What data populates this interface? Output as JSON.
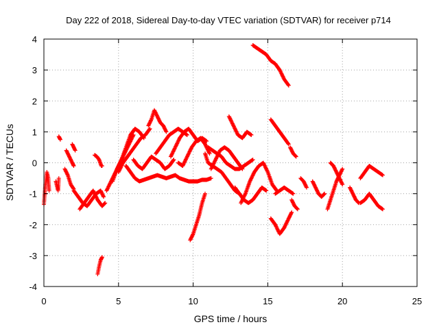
{
  "chart_data": {
    "type": "scatter",
    "title": "Day 222 of 2018, Sidereal Day-to-day VTEC variation (SDTVAR) for receiver p714",
    "xlabel": "GPS time / hours",
    "ylabel": "SDTVAR / TECUs",
    "xlim": [
      0,
      25
    ],
    "ylim": [
      -4,
      4
    ],
    "xticks": [
      "0",
      "5",
      "10",
      "15",
      "20",
      "25"
    ],
    "yticks": [
      "-4",
      "-3",
      "-2",
      "-1",
      "0",
      "1",
      "2",
      "3",
      "4"
    ],
    "grid": true,
    "marker": "+",
    "color": "#ff0000",
    "series": [
      {
        "name": "p714",
        "segments": [
          {
            "x": [
              0.0,
              0.1,
              0.2,
              0.3,
              0.35
            ],
            "y": [
              -1.35,
              -0.7,
              -0.3,
              -0.5,
              -0.9
            ]
          },
          {
            "x": [
              0.8,
              0.95,
              1.0
            ],
            "y": [
              -0.6,
              -0.9,
              -0.5
            ]
          },
          {
            "x": [
              1.0,
              1.05,
              1.1
            ],
            "y": [
              0.85,
              0.8,
              0.75
            ]
          },
          {
            "x": [
              1.4,
              1.6,
              1.8,
              2.0
            ],
            "y": [
              -0.2,
              -0.4,
              -0.7,
              -0.85
            ]
          },
          {
            "x": [
              1.5,
              1.7,
              1.9,
              2.0
            ],
            "y": [
              0.4,
              0.2,
              0.0,
              -0.1
            ]
          },
          {
            "x": [
              1.9,
              2.0,
              2.1
            ],
            "y": [
              0.6,
              0.5,
              0.4
            ]
          },
          {
            "x": [
              2.0,
              2.3,
              2.6,
              2.9,
              3.2,
              3.5,
              3.8,
              4.0
            ],
            "y": [
              -0.9,
              -1.1,
              -1.3,
              -1.4,
              -1.2,
              -1.0,
              -0.9,
              -1.1
            ]
          },
          {
            "x": [
              2.4,
              2.7,
              3.0,
              3.3,
              3.6,
              3.9,
              4.1
            ],
            "y": [
              -1.5,
              -1.3,
              -1.1,
              -0.9,
              -1.2,
              -1.4,
              -1.3
            ]
          },
          {
            "x": [
              3.4,
              3.55,
              3.7,
              3.85,
              3.9
            ],
            "y": [
              0.25,
              0.2,
              0.1,
              -0.1,
              -0.1
            ]
          },
          {
            "x": [
              3.6,
              3.7,
              3.8,
              3.9
            ],
            "y": [
              -3.6,
              -3.35,
              -3.15,
              -3.05
            ]
          },
          {
            "x": [
              4.2,
              4.5,
              4.8,
              5.1,
              5.4,
              5.7,
              6.0
            ],
            "y": [
              -0.9,
              -0.6,
              -0.3,
              0.0,
              0.3,
              0.6,
              0.9
            ]
          },
          {
            "x": [
              4.6,
              4.9,
              5.2,
              5.5,
              5.8,
              6.1,
              6.4,
              6.7
            ],
            "y": [
              -0.6,
              -0.2,
              0.1,
              0.5,
              0.9,
              1.1,
              1.0,
              0.8
            ]
          },
          {
            "x": [
              5.0,
              5.3,
              5.6,
              5.9,
              6.2,
              6.5,
              6.8,
              7.1
            ],
            "y": [
              -0.3,
              0.0,
              0.2,
              0.4,
              0.6,
              0.8,
              0.9,
              1.1
            ]
          },
          {
            "x": [
              5.5,
              5.8,
              6.1,
              6.4,
              6.7,
              7.0,
              7.3,
              7.6,
              7.9,
              8.2,
              8.5,
              8.8
            ],
            "y": [
              -0.1,
              -0.3,
              -0.5,
              -0.6,
              -0.55,
              -0.5,
              -0.45,
              -0.4,
              -0.45,
              -0.5,
              -0.45,
              -0.4
            ]
          },
          {
            "x": [
              6.0,
              6.3,
              6.6,
              6.9,
              7.2,
              7.5,
              7.8,
              8.1,
              8.4,
              8.7
            ],
            "y": [
              0.1,
              -0.1,
              -0.2,
              0.0,
              0.2,
              0.1,
              0.0,
              -0.2,
              -0.1,
              0.1
            ]
          },
          {
            "x": [
              7.0,
              7.2,
              7.4,
              7.6,
              7.8,
              8.0,
              8.2
            ],
            "y": [
              1.2,
              1.4,
              1.7,
              1.5,
              1.3,
              1.2,
              1.0
            ]
          },
          {
            "x": [
              7.5,
              7.8,
              8.1,
              8.4,
              8.7,
              9.0,
              9.3,
              9.6
            ],
            "y": [
              0.3,
              0.5,
              0.7,
              0.9,
              1.0,
              1.1,
              1.0,
              0.9
            ]
          },
          {
            "x": [
              8.5,
              8.8,
              9.1,
              9.4,
              9.7,
              10.0,
              10.3,
              10.6,
              10.9
            ],
            "y": [
              0.2,
              0.5,
              0.8,
              1.0,
              1.1,
              0.9,
              0.7,
              0.8,
              0.7
            ]
          },
          {
            "x": [
              8.8,
              9.1,
              9.4,
              9.7,
              10.0,
              10.3,
              10.6,
              10.9,
              11.2
            ],
            "y": [
              -0.4,
              -0.5,
              -0.55,
              -0.6,
              -0.6,
              -0.6,
              -0.55,
              -0.55,
              -0.5
            ]
          },
          {
            "x": [
              9.0,
              9.3,
              9.6,
              9.9,
              10.2,
              10.5,
              10.8,
              11.1
            ],
            "y": [
              0.0,
              -0.1,
              0.2,
              0.5,
              0.7,
              0.8,
              0.6,
              0.3
            ]
          },
          {
            "x": [
              9.8,
              10.0,
              10.2,
              10.4,
              10.6,
              10.8
            ],
            "y": [
              -2.5,
              -2.3,
              -2.0,
              -1.7,
              -1.3,
              -1.0
            ]
          },
          {
            "x": [
              10.8,
              11.0,
              11.3,
              11.6,
              11.9,
              12.2,
              12.5,
              12.8,
              13.1
            ],
            "y": [
              0.3,
              0.0,
              -0.1,
              -0.2,
              -0.3,
              -0.5,
              -0.7,
              -0.9,
              -1.0
            ]
          },
          {
            "x": [
              11.0,
              11.3,
              11.6,
              11.9,
              12.2,
              12.5,
              12.8,
              13.1,
              13.4,
              13.7,
              14.0
            ],
            "y": [
              0.5,
              0.4,
              0.3,
              0.2,
              0.0,
              -0.1,
              -0.2,
              -0.2,
              -0.1,
              0.0,
              0.1
            ]
          },
          {
            "x": [
              11.2,
              11.5,
              11.8,
              12.1,
              12.4,
              12.7,
              13.0,
              13.3
            ],
            "y": [
              -0.2,
              0.1,
              0.4,
              0.5,
              0.4,
              0.2,
              0.0,
              -0.2
            ]
          },
          {
            "x": [
              12.4,
              12.7,
              13.0,
              13.3,
              13.6,
              13.9
            ],
            "y": [
              1.5,
              1.2,
              0.9,
              0.8,
              1.0,
              0.9
            ]
          },
          {
            "x": [
              12.8,
              13.1,
              13.4,
              13.7,
              14.0,
              14.3,
              14.6,
              14.9
            ],
            "y": [
              -0.8,
              -1.0,
              -1.2,
              -1.3,
              -1.2,
              -1.0,
              -0.8,
              -0.9
            ]
          },
          {
            "x": [
              13.2,
              13.5,
              13.8,
              14.1,
              14.4,
              14.7,
              15.0,
              15.3,
              15.6
            ],
            "y": [
              -1.3,
              -1.0,
              -0.6,
              -0.3,
              -0.1,
              0.0,
              -0.3,
              -0.7,
              -0.9
            ]
          },
          {
            "x": [
              14.0,
              14.3,
              14.6,
              14.9,
              15.2,
              15.5,
              15.8,
              16.1,
              16.4
            ],
            "y": [
              3.8,
              3.7,
              3.6,
              3.5,
              3.3,
              3.2,
              3.0,
              2.7,
              2.5
            ]
          },
          {
            "x": [
              15.2,
              15.5,
              15.8,
              16.1,
              16.4,
              16.6
            ],
            "y": [
              -1.8,
              -2.0,
              -2.3,
              -2.1,
              -1.8,
              -1.6
            ]
          },
          {
            "x": [
              15.2,
              15.5,
              15.8,
              16.1,
              16.4
            ],
            "y": [
              1.4,
              1.2,
              1.0,
              0.8,
              0.6
            ]
          },
          {
            "x": [
              15.5,
              15.8,
              16.1,
              16.4,
              16.7
            ],
            "y": [
              -1.0,
              -0.9,
              -0.8,
              -0.9,
              -1.0
            ]
          },
          {
            "x": [
              16.5,
              16.7,
              16.9
            ],
            "y": [
              0.5,
              0.3,
              0.2
            ]
          },
          {
            "x": [
              16.6,
              16.8,
              17.0
            ],
            "y": [
              -1.2,
              -1.4,
              -1.5
            ]
          },
          {
            "x": [
              17.2,
              17.4,
              17.6
            ],
            "y": [
              -0.5,
              -0.6,
              -0.8
            ]
          },
          {
            "x": [
              18.0,
              18.2,
              18.4,
              18.6,
              18.8
            ],
            "y": [
              -0.6,
              -0.8,
              -1.0,
              -1.1,
              -1.0
            ]
          },
          {
            "x": [
              19.0,
              19.2,
              19.4,
              19.6,
              19.8,
              20.0
            ],
            "y": [
              -1.5,
              -1.2,
              -0.9,
              -0.6,
              -0.4,
              -0.2
            ]
          },
          {
            "x": [
              19.2,
              19.4,
              19.6,
              19.8,
              20.0
            ],
            "y": [
              0.0,
              -0.1,
              -0.3,
              -0.5,
              -0.7
            ]
          },
          {
            "x": [
              20.5,
              20.7,
              20.9,
              21.1
            ],
            "y": [
              -0.8,
              -1.0,
              -1.2,
              -1.3
            ]
          },
          {
            "x": [
              21.2,
              21.5,
              21.8,
              22.1,
              22.4,
              22.7
            ],
            "y": [
              -0.5,
              -0.3,
              -0.1,
              -0.2,
              -0.3,
              -0.4
            ]
          },
          {
            "x": [
              21.2,
              21.5,
              21.8,
              22.1,
              22.4,
              22.7
            ],
            "y": [
              -1.3,
              -1.2,
              -1.0,
              -1.2,
              -1.4,
              -1.5
            ]
          }
        ]
      }
    ]
  }
}
